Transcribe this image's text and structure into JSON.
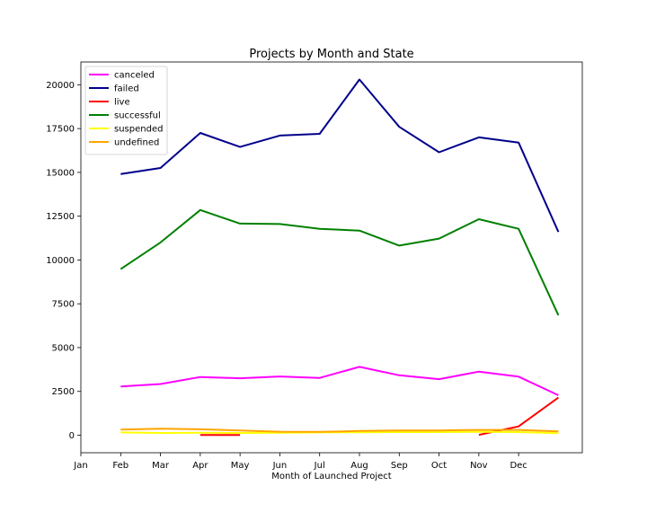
{
  "chart_data": {
    "type": "line",
    "title": "Projects by Month and State",
    "xlabel": "Month of Launched Project",
    "ylabel": "",
    "x_ticks": [
      {
        "x": 1,
        "label": "Jan"
      },
      {
        "x": 2,
        "label": "Feb"
      },
      {
        "x": 3,
        "label": "Mar"
      },
      {
        "x": 4,
        "label": "Apr"
      },
      {
        "x": 5,
        "label": "May"
      },
      {
        "x": 6,
        "label": "Jun"
      },
      {
        "x": 7,
        "label": "Jul"
      },
      {
        "x": 8,
        "label": "Aug"
      },
      {
        "x": 9,
        "label": "Sep"
      },
      {
        "x": 10,
        "label": "Oct"
      },
      {
        "x": 11,
        "label": "Nov"
      },
      {
        "x": 12,
        "label": "Dec"
      }
    ],
    "xlim": [
      1,
      13.6
    ],
    "ylim": [
      -1000,
      21300
    ],
    "y_ticks": [
      0,
      2500,
      5000,
      7500,
      10000,
      12500,
      15000,
      17500,
      20000
    ],
    "grid": false,
    "legend_position": "top-left",
    "series": [
      {
        "name": "canceled",
        "color": "#ff00ff",
        "points": [
          [
            2,
            2780
          ],
          [
            3,
            2920
          ],
          [
            4,
            3320
          ],
          [
            5,
            3250
          ],
          [
            6,
            3350
          ],
          [
            7,
            3270
          ],
          [
            8,
            3900
          ],
          [
            9,
            3420
          ],
          [
            10,
            3200
          ],
          [
            11,
            3630
          ],
          [
            12,
            3340
          ],
          [
            13,
            2280
          ]
        ]
      },
      {
        "name": "failed",
        "color": "#00008b",
        "points": [
          [
            2,
            14900
          ],
          [
            3,
            15250
          ],
          [
            4,
            17250
          ],
          [
            5,
            16450
          ],
          [
            6,
            17100
          ],
          [
            7,
            17200
          ],
          [
            8,
            20300
          ],
          [
            9,
            17600
          ],
          [
            10,
            16150
          ],
          [
            11,
            17000
          ],
          [
            12,
            16700
          ],
          [
            13,
            11600
          ]
        ]
      },
      {
        "name": "live",
        "color": "#ff0000",
        "points": [
          [
            4,
            10
          ],
          [
            5,
            10
          ],
          [
            11,
            20
          ],
          [
            12,
            500
          ],
          [
            13,
            2150
          ]
        ],
        "segments": [
          [
            0,
            1
          ],
          [
            2,
            4
          ]
        ]
      },
      {
        "name": "successful",
        "color": "#008000",
        "points": [
          [
            2,
            9480
          ],
          [
            3,
            11000
          ],
          [
            4,
            12850
          ],
          [
            5,
            12080
          ],
          [
            6,
            12050
          ],
          [
            7,
            11780
          ],
          [
            8,
            11680
          ],
          [
            9,
            10820
          ],
          [
            10,
            11220
          ],
          [
            11,
            12330
          ],
          [
            12,
            11780
          ],
          [
            13,
            6850
          ]
        ]
      },
      {
        "name": "suspended",
        "color": "#ffff00",
        "points": [
          [
            2,
            160
          ],
          [
            3,
            130
          ],
          [
            4,
            140
          ],
          [
            5,
            130
          ],
          [
            6,
            140
          ],
          [
            7,
            160
          ],
          [
            8,
            170
          ],
          [
            9,
            180
          ],
          [
            10,
            180
          ],
          [
            11,
            190
          ],
          [
            12,
            180
          ],
          [
            13,
            120
          ]
        ]
      },
      {
        "name": "undefined",
        "color": "#ffa500",
        "points": [
          [
            2,
            320
          ],
          [
            3,
            370
          ],
          [
            4,
            340
          ],
          [
            5,
            270
          ],
          [
            6,
            200
          ],
          [
            7,
            190
          ],
          [
            8,
            240
          ],
          [
            9,
            270
          ],
          [
            10,
            270
          ],
          [
            11,
            300
          ],
          [
            12,
            300
          ],
          [
            13,
            220
          ]
        ]
      }
    ]
  }
}
